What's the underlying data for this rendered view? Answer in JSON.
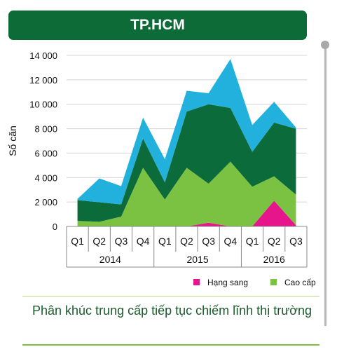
{
  "header": {
    "title": "TP.HCM"
  },
  "chart_data": {
    "type": "area",
    "stacked": true,
    "ylabel": "Số căn",
    "ylim": [
      0,
      14000
    ],
    "yticks": [
      0,
      2000,
      4000,
      6000,
      8000,
      10000,
      12000,
      14000
    ],
    "ytick_labels": [
      "0",
      "2 000",
      "4 000",
      "6 000",
      "8 000",
      "10 000",
      "12 000",
      "14 000"
    ],
    "grid": true,
    "legend_position": "bottom-right",
    "categories": [
      "Q1",
      "Q2",
      "Q3",
      "Q4",
      "Q1",
      "Q2",
      "Q3",
      "Q4",
      "Q1",
      "Q2",
      "Q3"
    ],
    "years": [
      {
        "label": "2014",
        "start": 0,
        "end": 3
      },
      {
        "label": "2015",
        "start": 4,
        "end": 7
      },
      {
        "label": "2016",
        "start": 8,
        "end": 10
      }
    ],
    "series": [
      {
        "name": "Hạng sang",
        "color": "#e6158c",
        "values": [
          0,
          0,
          0,
          0,
          0,
          0,
          300,
          0,
          0,
          2100,
          100
        ]
      },
      {
        "name": "Cao cấp",
        "color": "#7cc242",
        "values": [
          450,
          380,
          800,
          4800,
          2200,
          4800,
          3200,
          5300,
          3250,
          2000,
          2500
        ]
      },
      {
        "name": "",
        "color": "#0b6b3a",
        "values": [
          1700,
          1600,
          1000,
          2400,
          1400,
          4600,
          6500,
          4400,
          2850,
          4400,
          5400
        ]
      },
      {
        "name": "",
        "color": "#22b1dd",
        "values": [
          100,
          1950,
          1500,
          1700,
          1900,
          1700,
          900,
          4000,
          2200,
          1700,
          100
        ]
      }
    ]
  },
  "caption": "Phân khúc trung cấp tiếp tục chiếm lĩnh thị trường"
}
